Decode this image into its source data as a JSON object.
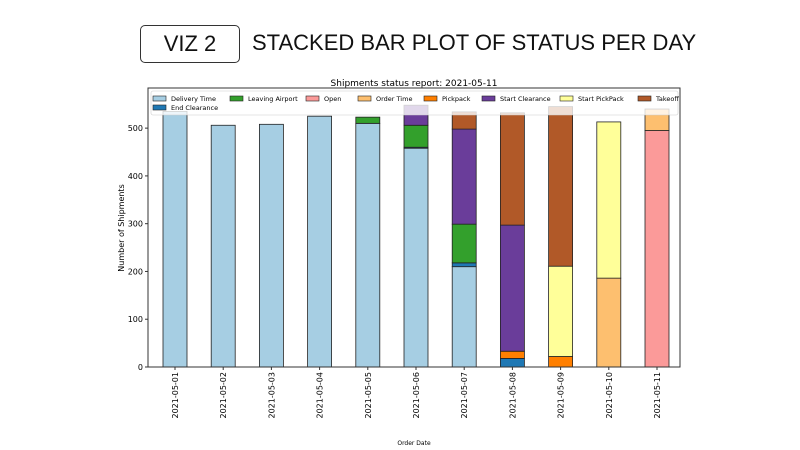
{
  "slide": {
    "badge": "VIZ 2",
    "title": "STACKED BAR PLOT OF STATUS PER DAY"
  },
  "chart_data": {
    "type": "bar",
    "stacked": true,
    "title": "Shipments status report: 2021-05-11",
    "xlabel": "Order Date",
    "ylabel": "Number of Shipments",
    "ylim": [
      0,
      584
    ],
    "yticks": [
      0,
      100,
      200,
      300,
      400,
      500
    ],
    "legend_position": "top",
    "categories": [
      "2021-05-01",
      "2021-05-02",
      "2021-05-03",
      "2021-05-04",
      "2021-05-05",
      "2021-05-06",
      "2021-05-07",
      "2021-05-08",
      "2021-05-09",
      "2021-05-10",
      "2021-05-11"
    ],
    "series": [
      {
        "name": "Delivery Time",
        "color": "#a6cee3",
        "values": [
          535,
          506,
          508,
          525,
          510,
          458,
          210,
          0,
          0,
          0,
          0
        ]
      },
      {
        "name": "End Clearance",
        "color": "#1f78b4",
        "values": [
          0,
          0,
          0,
          0,
          0,
          2,
          8,
          18,
          0,
          0,
          0
        ]
      },
      {
        "name": "Leaving Airport",
        "color": "#33a02c",
        "values": [
          0,
          0,
          0,
          0,
          13,
          46,
          81,
          0,
          0,
          0,
          0
        ]
      },
      {
        "name": "Open",
        "color": "#fb9a99",
        "values": [
          0,
          0,
          0,
          0,
          0,
          0,
          0,
          0,
          0,
          0,
          495
        ]
      },
      {
        "name": "Order Time",
        "color": "#fdbf6f",
        "values": [
          0,
          0,
          0,
          0,
          0,
          0,
          0,
          0,
          0,
          186,
          45
        ]
      },
      {
        "name": "Pickpack",
        "color": "#ff7f00",
        "values": [
          0,
          0,
          0,
          0,
          0,
          0,
          0,
          15,
          22,
          0,
          0
        ]
      },
      {
        "name": "Start Clearance",
        "color": "#6a3d9a",
        "values": [
          0,
          0,
          0,
          0,
          0,
          42,
          199,
          264,
          0,
          0,
          0
        ]
      },
      {
        "name": "Start PickPack",
        "color": "#ffff99",
        "values": [
          0,
          0,
          0,
          0,
          0,
          0,
          0,
          0,
          189,
          327,
          0
        ]
      },
      {
        "name": "Takeoff",
        "color": "#b15928",
        "values": [
          0,
          0,
          0,
          0,
          0,
          0,
          36,
          235,
          334,
          0,
          0
        ]
      }
    ],
    "legend_order": [
      "Delivery Time",
      "Leaving Airport",
      "Open",
      "Order Time",
      "Pickpack",
      "Start Clearance",
      "Start PickPack",
      "Takeoff",
      "End Clearance"
    ]
  }
}
